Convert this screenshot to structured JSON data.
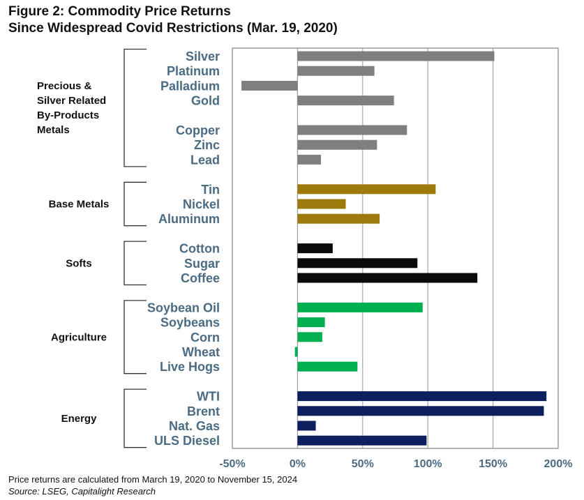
{
  "chart_data": {
    "type": "bar",
    "orientation": "horizontal",
    "title": "Figure 2: Commodity Price Returns",
    "subtitle": "Since Widespread Covid Restrictions (Mar. 19, 2020)",
    "xlim": [
      -50,
      200
    ],
    "x_ticks": [
      "-50%",
      "0%",
      "50%",
      "100%",
      "150%",
      "200%"
    ],
    "x_tick_values": [
      -50,
      0,
      50,
      100,
      150,
      200
    ],
    "grid": "vertical",
    "groups": [
      {
        "name": "Precious & Silver Related By-Products Metals",
        "name_lines": [
          "Precious &",
          "Silver Related",
          "By-Products",
          "Metals"
        ],
        "color": "#7f7f7f",
        "items": [
          {
            "label": "Silver",
            "value": 151
          },
          {
            "label": "Platinum",
            "value": 59
          },
          {
            "label": "Palladium",
            "value": -43
          },
          {
            "label": "Gold",
            "value": 74
          },
          {
            "label": "Copper",
            "value": 84
          },
          {
            "label": "Zinc",
            "value": 61
          },
          {
            "label": "Lead",
            "value": 18
          }
        ]
      },
      {
        "name": "Base Metals",
        "name_lines": [
          "Base Metals"
        ],
        "color": "#9e7a0c",
        "items": [
          {
            "label": "Tin",
            "value": 106
          },
          {
            "label": "Nickel",
            "value": 37
          },
          {
            "label": "Aluminum",
            "value": 63
          }
        ]
      },
      {
        "name": "Softs",
        "name_lines": [
          "Softs"
        ],
        "color": "#0a0a0a",
        "items": [
          {
            "label": "Cotton",
            "value": 27
          },
          {
            "label": "Sugar",
            "value": 92
          },
          {
            "label": "Coffee",
            "value": 138
          }
        ]
      },
      {
        "name": "Agriculture",
        "name_lines": [
          "Agriculture"
        ],
        "color": "#00b050",
        "items": [
          {
            "label": "Soybean Oil",
            "value": 96
          },
          {
            "label": "Soybeans",
            "value": 21
          },
          {
            "label": "Corn",
            "value": 19
          },
          {
            "label": "Wheat",
            "value": -2
          },
          {
            "label": "Live Hogs",
            "value": 46
          }
        ]
      },
      {
        "name": "Energy",
        "name_lines": [
          "Energy"
        ],
        "color": "#0d1f5c",
        "items": [
          {
            "label": "WTI",
            "value": 191
          },
          {
            "label": "Brent",
            "value": 189
          },
          {
            "label": "Nat. Gas",
            "value": 14
          },
          {
            "label": "ULS Diesel",
            "value": 99
          }
        ]
      }
    ]
  },
  "footnote": "Price returns are calculated from March 19, 2020 to November 15, 2024",
  "source": "Source: LSEG, Capitalight Research"
}
